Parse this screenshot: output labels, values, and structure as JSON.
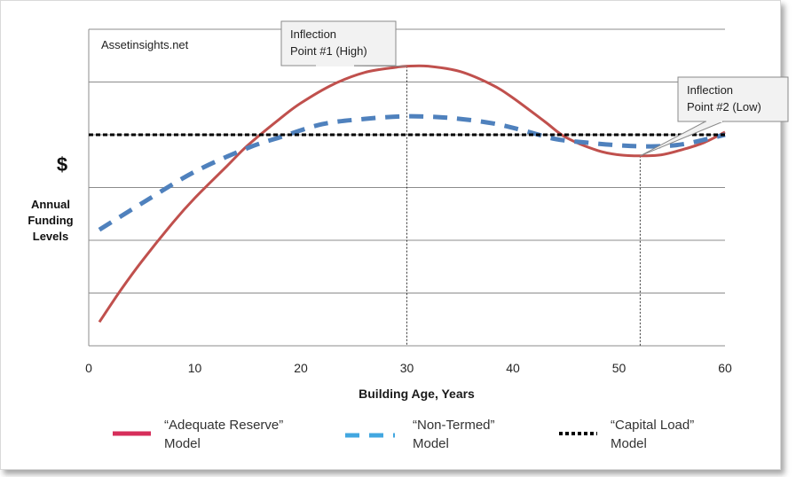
{
  "chart_data": {
    "type": "line",
    "watermark": "Assetinsights.net",
    "xlabel": "Building Age, Years",
    "ylabel": {
      "symbol": "$",
      "lines": [
        "Annual",
        "Funding",
        "Levels"
      ]
    },
    "xlim": [
      0,
      60
    ],
    "ylim": [
      0,
      6
    ],
    "x_ticks": [
      0,
      10,
      20,
      30,
      40,
      50,
      60
    ],
    "y_tick_labels_shown": false,
    "grid": "horizontal",
    "colors": {
      "adequate": "#c0504d",
      "non_termed": "#4f81bd",
      "capital": "#000000",
      "legend_adequate": "#d62e5a",
      "legend_non_termed": "#42a7e0",
      "grid": "#8c8c8c",
      "callout_fill": "#f2f2f2"
    },
    "series": [
      {
        "name": "“Adequate Reserve” Model",
        "name_lines": [
          "“Adequate Reserve”",
          "Model"
        ],
        "style": "solid",
        "x": [
          1,
          3,
          5,
          8,
          10,
          13,
          15,
          18,
          20,
          23,
          26,
          29,
          30,
          32,
          35,
          38,
          40,
          43,
          45,
          48,
          50,
          52,
          54,
          56,
          58,
          60
        ],
        "y": [
          0.45,
          1.05,
          1.6,
          2.35,
          2.8,
          3.4,
          3.8,
          4.3,
          4.6,
          4.95,
          5.18,
          5.28,
          5.3,
          5.3,
          5.2,
          4.95,
          4.7,
          4.25,
          3.95,
          3.7,
          3.62,
          3.6,
          3.62,
          3.72,
          3.85,
          4.05
        ]
      },
      {
        "name": "“Non-Termed” Model",
        "name_lines": [
          "“Non-Termed”",
          "Model"
        ],
        "style": "dashed",
        "x": [
          1,
          5,
          10,
          15,
          18,
          22,
          26,
          30,
          34,
          38,
          41,
          44,
          47,
          50,
          53,
          56,
          60
        ],
        "y": [
          2.2,
          2.7,
          3.3,
          3.75,
          3.95,
          4.2,
          4.3,
          4.35,
          4.32,
          4.22,
          4.08,
          3.92,
          3.85,
          3.8,
          3.78,
          3.82,
          4.0
        ]
      },
      {
        "name": "“Capital Load” Model",
        "name_lines": [
          "“Capital Load”",
          "Model"
        ],
        "style": "dotted",
        "x": [
          0,
          60
        ],
        "y": [
          4.0,
          4.0
        ]
      }
    ],
    "annotations": [
      {
        "lines": [
          "Inflection",
          "Point #1 (High)"
        ],
        "x": 30,
        "y": 5.3
      },
      {
        "lines": [
          "Inflection",
          "Point #2 (Low)"
        ],
        "x": 52,
        "y": 3.6
      }
    ]
  }
}
